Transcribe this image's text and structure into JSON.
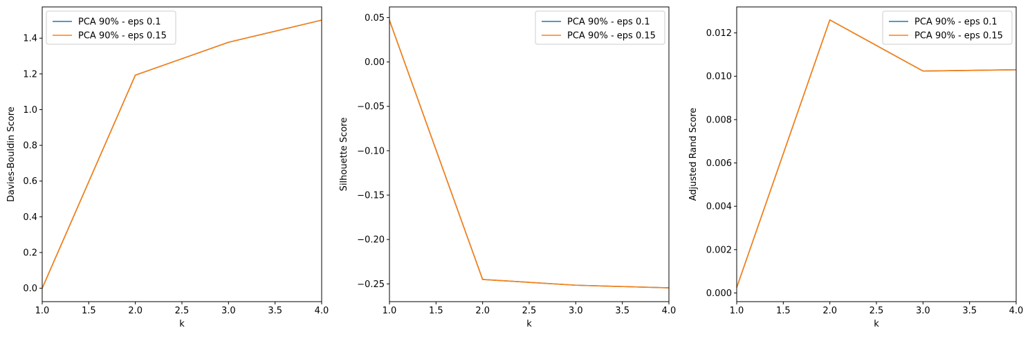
{
  "chart_data": [
    {
      "type": "line",
      "xlabel": "k",
      "ylabel": "Davies-Bouldin Score",
      "xlim": [
        1.0,
        4.0
      ],
      "ylim": [
        -0.075,
        1.575
      ],
      "xticks": [
        1.0,
        1.5,
        2.0,
        2.5,
        3.0,
        3.5,
        4.0
      ],
      "xtick_labels": [
        "1.0",
        "1.5",
        "2.0",
        "2.5",
        "3.0",
        "3.5",
        "4.0"
      ],
      "yticks": [
        0.0,
        0.2,
        0.4,
        0.6,
        0.8,
        1.0,
        1.2,
        1.4
      ],
      "ytick_labels": [
        "0.0",
        "0.2",
        "0.4",
        "0.6",
        "0.8",
        "1.0",
        "1.2",
        "1.4"
      ],
      "legend_position": "upper-left",
      "x": [
        1,
        2,
        3,
        4
      ],
      "series": [
        {
          "name": "PCA 90% - eps 0.1",
          "color": "#1f77b4",
          "values": [
            0.0,
            1.193,
            1.377,
            1.501
          ]
        },
        {
          "name": "PCA 90% - eps 0.15",
          "color": "#ff7f0e",
          "values": [
            0.0,
            1.193,
            1.377,
            1.501
          ]
        }
      ]
    },
    {
      "type": "line",
      "xlabel": "k",
      "ylabel": "Silhouette Score",
      "xlim": [
        1.0,
        4.0
      ],
      "ylim": [
        -0.27,
        0.062
      ],
      "xticks": [
        1.0,
        1.5,
        2.0,
        2.5,
        3.0,
        3.5,
        4.0
      ],
      "xtick_labels": [
        "1.0",
        "1.5",
        "2.0",
        "2.5",
        "3.0",
        "3.5",
        "4.0"
      ],
      "yticks": [
        0.05,
        0.0,
        -0.05,
        -0.1,
        -0.15,
        -0.2,
        -0.25
      ],
      "ytick_labels": [
        "0.05",
        "0.00",
        "−0.05",
        "−0.10",
        "−0.15",
        "−0.20",
        "−0.25"
      ],
      "legend_position": "upper-right",
      "x": [
        1,
        2,
        3,
        4
      ],
      "series": [
        {
          "name": "PCA 90% - eps 0.1",
          "color": "#1f77b4",
          "values": [
            0.047,
            -0.245,
            -0.2515,
            -0.2545
          ]
        },
        {
          "name": "PCA 90% - eps 0.15",
          "color": "#ff7f0e",
          "values": [
            0.047,
            -0.245,
            -0.2515,
            -0.2545
          ]
        }
      ]
    },
    {
      "type": "line",
      "xlabel": "k",
      "ylabel": "Adjusted Rand Score",
      "xlim": [
        1.0,
        4.0
      ],
      "ylim": [
        -0.0004,
        0.0132
      ],
      "xticks": [
        1.0,
        1.5,
        2.0,
        2.5,
        3.0,
        3.5,
        4.0
      ],
      "xtick_labels": [
        "1.0",
        "1.5",
        "2.0",
        "2.5",
        "3.0",
        "3.5",
        "4.0"
      ],
      "yticks": [
        0.0,
        0.002,
        0.004,
        0.006,
        0.008,
        0.01,
        0.012
      ],
      "ytick_labels": [
        "0.000",
        "0.002",
        "0.004",
        "0.006",
        "0.008",
        "0.010",
        "0.012"
      ],
      "legend_position": "upper-right",
      "x": [
        1,
        2,
        3,
        4
      ],
      "series": [
        {
          "name": "PCA 90% - eps 0.1",
          "color": "#1f77b4",
          "values": [
            0.00025,
            0.0126,
            0.01024,
            0.0103
          ]
        },
        {
          "name": "PCA 90% - eps 0.15",
          "color": "#ff7f0e",
          "values": [
            0.00025,
            0.0126,
            0.01024,
            0.0103
          ]
        }
      ]
    }
  ]
}
